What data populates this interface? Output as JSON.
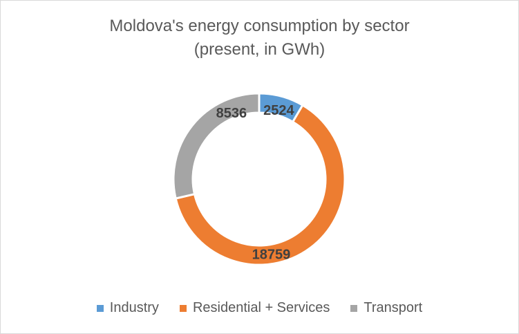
{
  "chart_data": {
    "type": "pie",
    "variant": "doughnut",
    "title_line1": "Moldova's energy consumption by sector",
    "title_line2": "(present, in GWh)",
    "categories": [
      "Industry",
      "Residential + Services",
      "Transport"
    ],
    "values": [
      2524,
      18759,
      8536
    ],
    "colors": [
      "#5b9bd5",
      "#ed7d31",
      "#a5a5a5"
    ],
    "legend_position": "bottom",
    "data_labels": [
      "2524",
      "18759",
      "8536"
    ]
  }
}
